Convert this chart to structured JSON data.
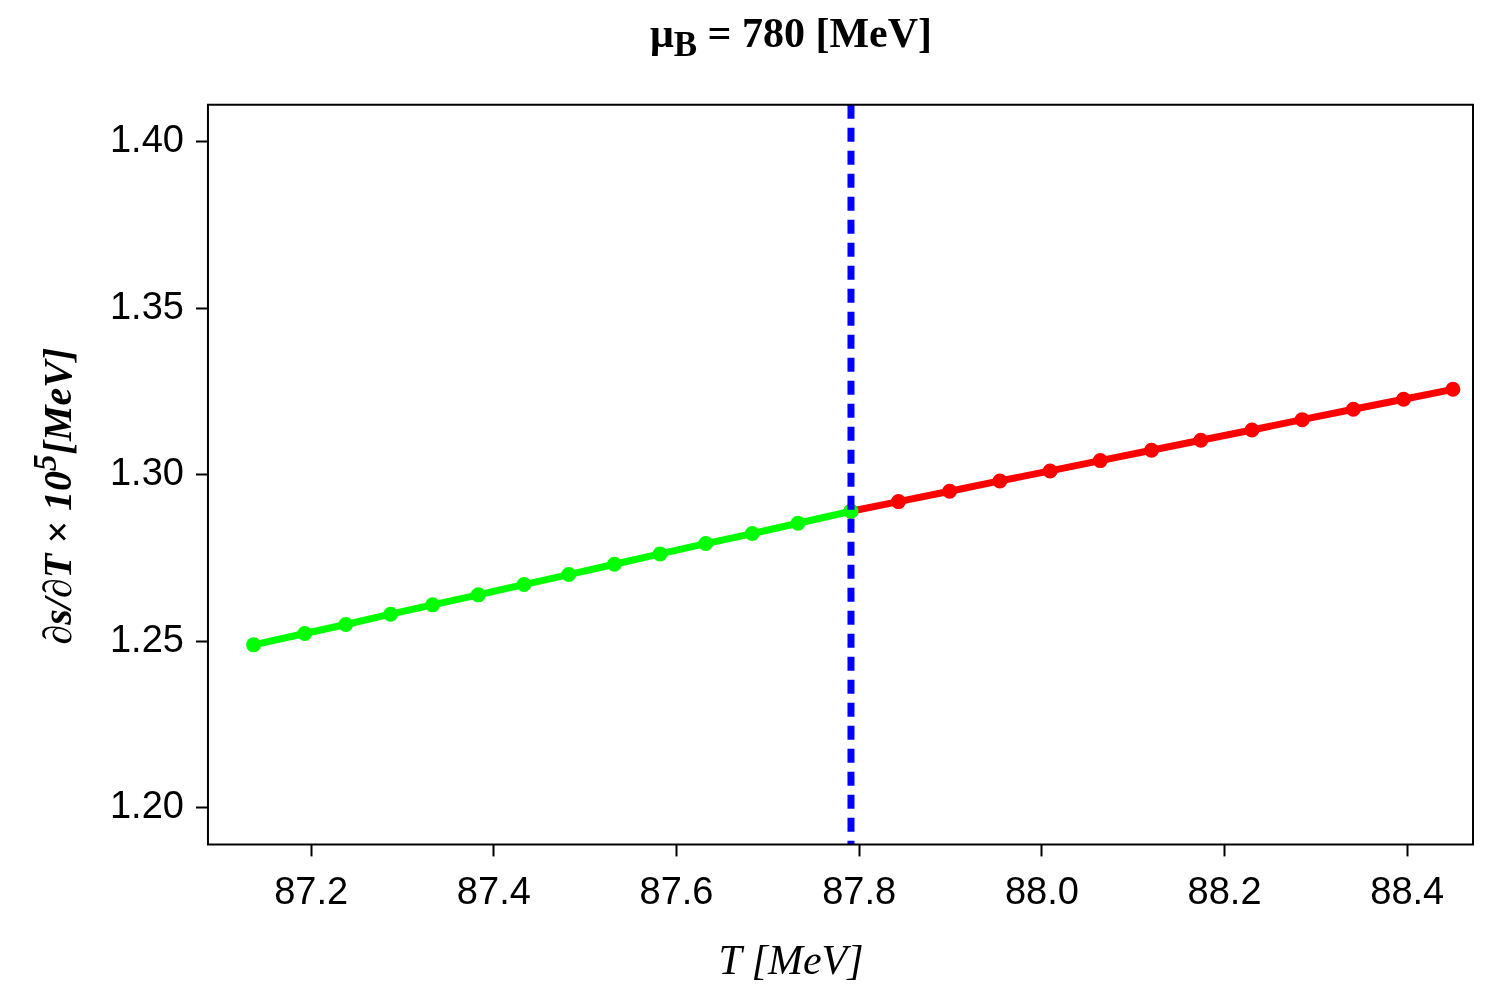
{
  "chart_data": {
    "type": "line",
    "title": "μ$_{B}$ = 780 [MeV]",
    "xlabel": "T [MeV]",
    "ylabel": "∂s/∂T × 10$^{5}$[MeV]",
    "xlim": [
      87.087,
      88.472
    ],
    "xticks": [
      87.2,
      87.4,
      87.6,
      87.8,
      {
        "value": 88,
        "label": "88.0"
      },
      88.2,
      88.4
    ],
    "ylim": [
      1.189,
      1.411
    ],
    "yticks": [
      {
        "value": 1.2,
        "label": "1.20"
      },
      1.25,
      {
        "value": 1.3,
        "label": "1.30"
      },
      1.35,
      {
        "value": 1.4,
        "label": "1.40"
      }
    ],
    "grid": false,
    "legend": false,
    "marker": "circle",
    "line_style": "solid",
    "series": [
      {
        "color": "#00ff00",
        "x": [
          87.137,
          87.193,
          87.238,
          87.287,
          87.333,
          87.383,
          87.433,
          87.482,
          87.532,
          87.582,
          87.632,
          87.683,
          87.733,
          87.791
        ],
        "values": [
          1.2489,
          1.2523,
          1.255,
          1.2581,
          1.2609,
          1.2639,
          1.267,
          1.27,
          1.2731,
          1.2762,
          1.2793,
          1.2823,
          1.2854,
          1.289
        ]
      },
      {
        "color": "#ff0000",
        "x": [
          87.791,
          87.843,
          87.899,
          87.954,
          88.009,
          88.064,
          88.12,
          88.174,
          88.23,
          88.285,
          88.341,
          88.396,
          88.45
        ],
        "values": [
          1.289,
          1.2919,
          1.295,
          1.2981,
          1.3011,
          1.3042,
          1.3073,
          1.3103,
          1.3134,
          1.3165,
          1.3196,
          1.3226,
          1.3256
        ]
      }
    ],
    "ref_lines": [
      {
        "axis": "x",
        "value": 87.791,
        "color": "#0000ff",
        "line_style": "dashed"
      }
    ]
  }
}
